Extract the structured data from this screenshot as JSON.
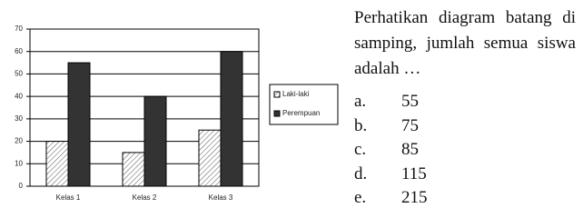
{
  "chart_data": {
    "type": "bar",
    "categories": [
      "Kelas 1",
      "Kelas 2",
      "Kelas 3"
    ],
    "series": [
      {
        "name": "Laki-laki",
        "color": "#ffffff",
        "hatch": true,
        "values": [
          20,
          15,
          25
        ]
      },
      {
        "name": "Perempuan",
        "color": "#333333",
        "hatch": false,
        "values": [
          55,
          40,
          60
        ]
      }
    ],
    "ylim": [
      0,
      70
    ],
    "yticks": [
      0,
      10,
      20,
      30,
      40,
      50,
      60,
      70
    ],
    "grid": true,
    "legend": "right"
  },
  "question": {
    "text": "Perhatikan diagram batang di samping, jumlah semua siswa adalah …",
    "options": [
      {
        "letter": "a.",
        "text": "55"
      },
      {
        "letter": "b.",
        "text": "75"
      },
      {
        "letter": "c.",
        "text": "85"
      },
      {
        "letter": "d.",
        "text": "115"
      },
      {
        "letter": "e.",
        "text": "215"
      }
    ]
  }
}
